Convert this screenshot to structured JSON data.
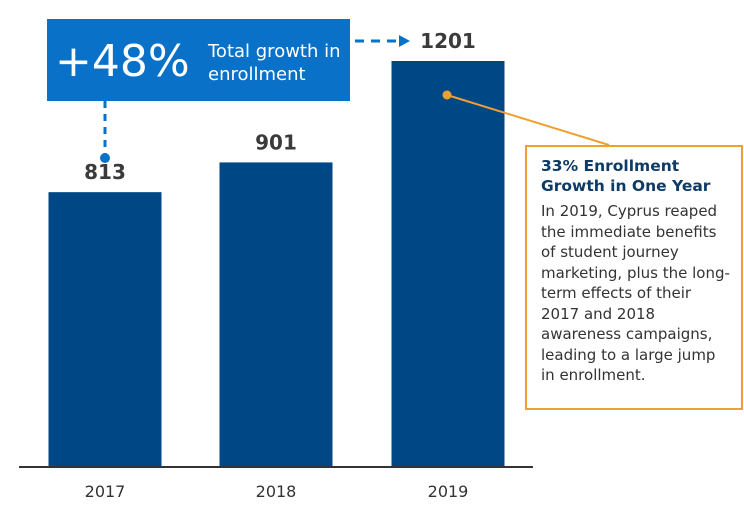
{
  "chart_data": {
    "type": "bar",
    "categories": [
      "2017",
      "2018",
      "2019"
    ],
    "values": [
      813,
      901,
      1201
    ],
    "value_labels": [
      "813",
      "901",
      "1201"
    ],
    "ylim": [
      0,
      1300
    ],
    "title": "",
    "xlabel": "",
    "ylabel": "",
    "grid": false,
    "bar_color": "#004785"
  },
  "callout_growth": {
    "percent": "+48%",
    "text": "Total growth in enrollment",
    "color": "#0a71c8"
  },
  "callout_note": {
    "title": "33% Enrollment Growth in One Year",
    "body": "In 2019, Cyprus reaped the immediate benefits of student journey marketing, plus the long-term effects of their 2017 and 2018 awareness campaigns, leading to a large jump in enrollment.",
    "border_color": "#f0a030"
  },
  "connector_colors": {
    "blue": "#0a71c8",
    "orange": "#f0a030"
  }
}
